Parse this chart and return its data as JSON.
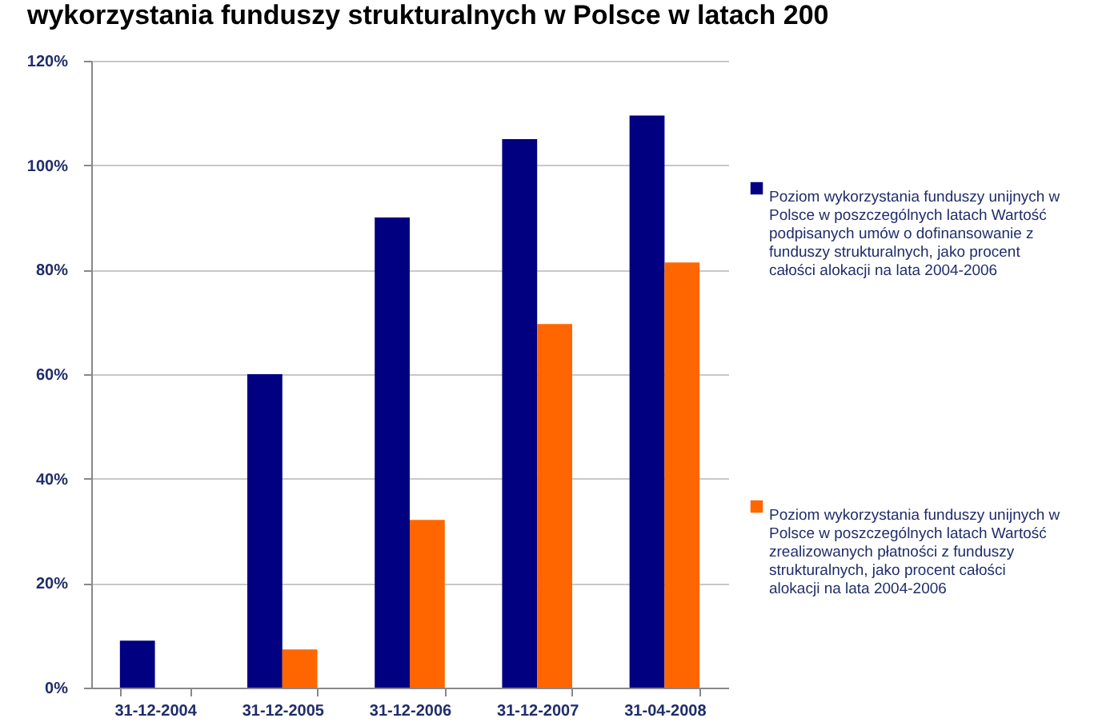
{
  "chart_data": {
    "type": "bar",
    "title": "wykorzystania funduszy strukturalnych w Polsce w latach 200",
    "categories": [
      "31-12-2004",
      "31-12-2005",
      "31-12-2006",
      "31-12-2007",
      "31-04-2008"
    ],
    "series": [
      {
        "name": "Poziom wykorzystania funduszy  unijnych w Polsce w poszczególnych latach Wartość podpisanych umów o dofinansowanie  z funduszy strukturalnych, jako procent całości alokacji na lata 2004-2006",
        "color": "#000080",
        "values": [
          9,
          60,
          90,
          105,
          109.5
        ]
      },
      {
        "name": "Poziom wykorzystania funduszy unijnych w Polsce w poszczególnych latach Wartość zrealizowanych płatności z funduszy strukturalnych, jako procent całości alokacji na lata 2004-2006",
        "color": "#ff6600",
        "values": [
          0,
          7.3,
          32.1,
          69.6,
          81.4
        ]
      }
    ],
    "ylim": [
      0,
      120
    ],
    "yticks": [
      {
        "value": 0,
        "label": "0%"
      },
      {
        "value": 20,
        "label": "20%"
      },
      {
        "value": 40,
        "label": "40%"
      },
      {
        "value": 60,
        "label": "60%"
      },
      {
        "value": 80,
        "label": "80%"
      },
      {
        "value": 100,
        "label": "100%"
      },
      {
        "value": 120,
        "label": "120%"
      }
    ],
    "grid": "y",
    "legend": "right"
  }
}
